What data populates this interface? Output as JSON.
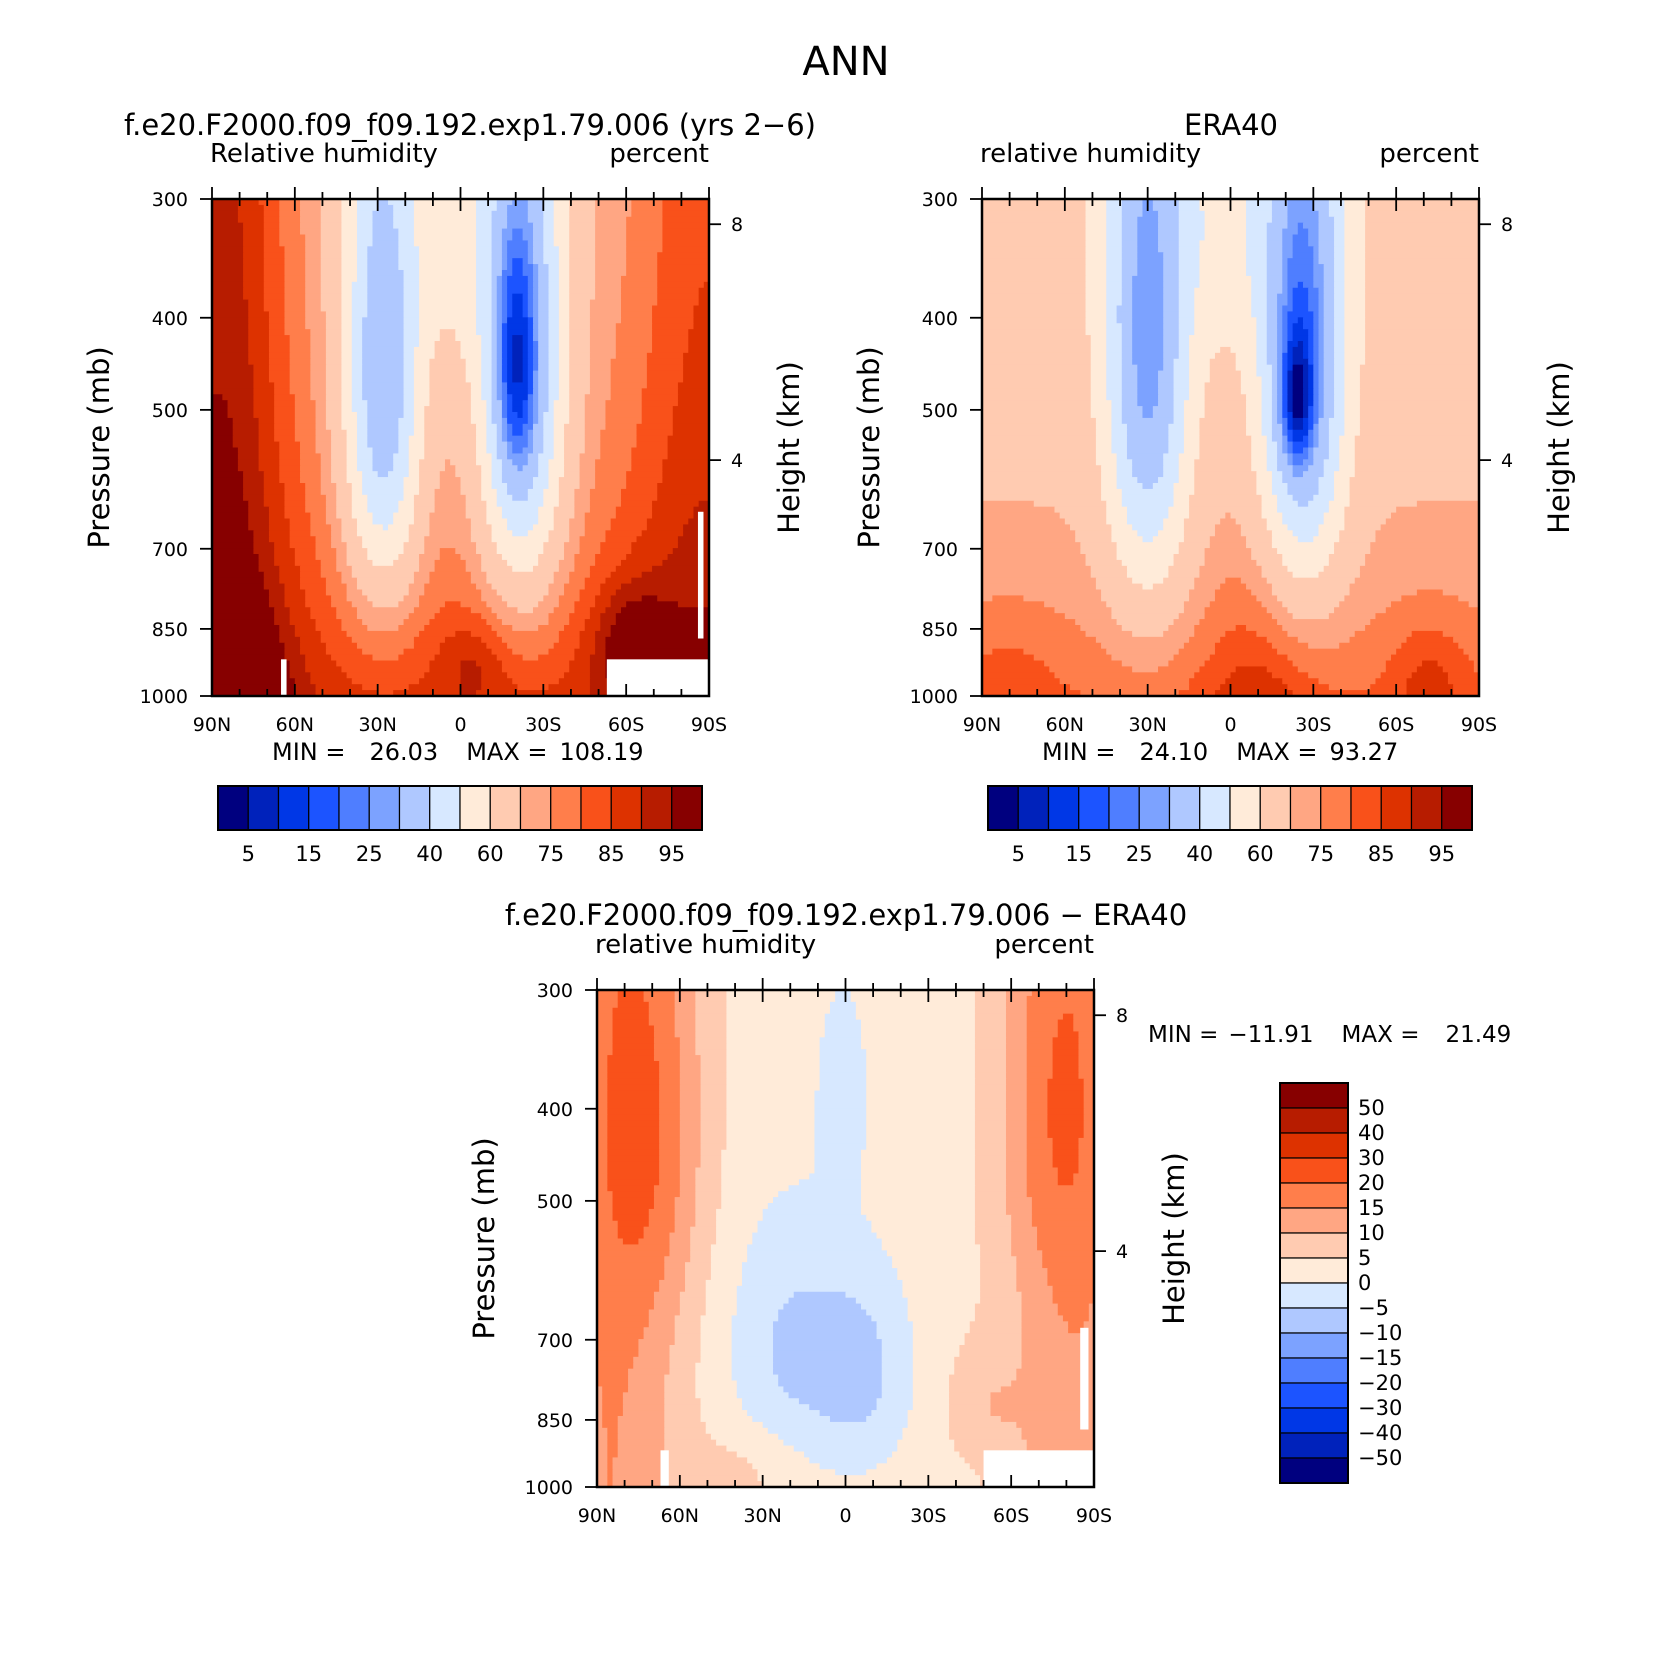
{
  "figure_title": "ANN",
  "palettes": {
    "abs": [
      "#00007f",
      "#0022bb",
      "#0037e6",
      "#1c54ff",
      "#4f7eff",
      "#7ca2ff",
      "#afc8ff",
      "#d7e8ff",
      "#ffebd9",
      "#ffcbb1",
      "#ffa683",
      "#ff7e4b",
      "#f9511a",
      "#dd3200",
      "#b71c00",
      "#870000"
    ],
    "diff": [
      "#00007f",
      "#0022bb",
      "#0037e6",
      "#1c54ff",
      "#4f7eff",
      "#7ca2ff",
      "#afc8ff",
      "#d7e8ff",
      "#ffebd9",
      "#ffcbb1",
      "#ffa683",
      "#ff7e4b",
      "#f9511a",
      "#dd3200",
      "#b71c00",
      "#870000"
    ]
  },
  "chart_data": [
    {
      "type": "heatmap",
      "title": "f.e20.F2000.f09_f09.192.exp1.79.006 (yrs 2−6)",
      "left_subtitle": "Relative humidity",
      "right_subtitle": "percent",
      "ylabel": "Pressure (mb)",
      "y2label": "Height (km)",
      "x_ticks": [
        "90N",
        "60N",
        "30N",
        "0",
        "30S",
        "60S",
        "90S"
      ],
      "y_ticks": [
        "300",
        "400",
        "500",
        "700",
        "850",
        "1000"
      ],
      "y2_ticks": [
        "8",
        "4"
      ],
      "stats": {
        "min_label": "MIN =",
        "min": "26.03",
        "max_label": "MAX =",
        "max": "108.19"
      },
      "legend_labels": [
        "5",
        "15",
        "25",
        "40",
        "60",
        "75",
        "85",
        "95"
      ],
      "levels": [
        5,
        10,
        15,
        20,
        25,
        30,
        40,
        50,
        60,
        70,
        75,
        80,
        85,
        90,
        95
      ],
      "palette": "abs",
      "field": "model",
      "missing": [
        {
          "lat": [
            -90,
            -53
          ],
          "p": [
            915,
            1000
          ]
        },
        {
          "lat": [
            -88,
            -86
          ],
          "p": [
            640,
            870
          ]
        },
        {
          "lat": [
            65,
            63
          ],
          "p": [
            915,
            1000
          ]
        }
      ]
    },
    {
      "type": "heatmap",
      "title": "ERA40",
      "left_subtitle": "relative humidity",
      "right_subtitle": "percent",
      "ylabel": "Pressure (mb)",
      "y2label": "Height (km)",
      "x_ticks": [
        "90N",
        "60N",
        "30N",
        "0",
        "30S",
        "60S",
        "90S"
      ],
      "y_ticks": [
        "300",
        "400",
        "500",
        "700",
        "850",
        "1000"
      ],
      "y2_ticks": [
        "8",
        "4"
      ],
      "stats": {
        "min_label": "MIN =",
        "min": "24.10",
        "max_label": "MAX =",
        "max": "93.27"
      },
      "legend_labels": [
        "5",
        "15",
        "25",
        "40",
        "60",
        "75",
        "85",
        "95"
      ],
      "levels": [
        5,
        10,
        15,
        20,
        25,
        30,
        40,
        50,
        60,
        70,
        75,
        80,
        85,
        90,
        95
      ],
      "palette": "abs",
      "field": "obs",
      "missing": []
    },
    {
      "type": "heatmap",
      "title": "f.e20.F2000.f09_f09.192.exp1.79.006 − ERA40",
      "left_subtitle": "relative humidity",
      "right_subtitle": "percent",
      "ylabel": "Pressure (mb)",
      "y2label": "Height (km)",
      "x_ticks": [
        "90N",
        "60N",
        "30N",
        "0",
        "30S",
        "60S",
        "90S"
      ],
      "y_ticks": [
        "300",
        "400",
        "500",
        "700",
        "850",
        "1000"
      ],
      "y2_ticks": [
        "8",
        "4"
      ],
      "stats": {
        "min_label": "MIN =",
        "min": "−11.91",
        "max_label": "MAX =",
        "max": "21.49"
      },
      "legend_labels": [
        "50",
        "40",
        "30",
        "20",
        "15",
        "10",
        "5",
        "0",
        "−5",
        "−10",
        "−15",
        "−20",
        "−30",
        "−40",
        "−50"
      ],
      "levels": [
        -50,
        -40,
        -30,
        -20,
        -15,
        -10,
        -5,
        0,
        5,
        10,
        15,
        20,
        30,
        40,
        50
      ],
      "palette": "diff",
      "field": "diff",
      "missing": [
        {
          "lat": [
            -90,
            -50
          ],
          "p": [
            915,
            1000
          ]
        },
        {
          "lat": [
            -88,
            -85
          ],
          "p": [
            680,
            870
          ]
        },
        {
          "lat": [
            67,
            64
          ],
          "p": [
            915,
            1000
          ]
        }
      ]
    }
  ]
}
